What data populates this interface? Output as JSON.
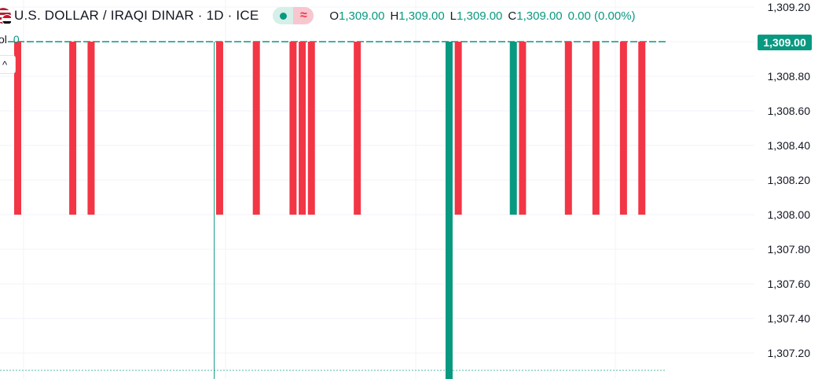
{
  "header": {
    "symbol_title": "U.S. DOLLAR / IRAQI DINAR · 1D · ICE",
    "ohlc": [
      {
        "key": "O",
        "value": "1,309.00"
      },
      {
        "key": "H",
        "value": "1,309.00"
      },
      {
        "key": "L",
        "value": "1,309.00"
      },
      {
        "key": "C",
        "value": "1,309.00"
      }
    ],
    "change": "0.00 (0.00%)",
    "volume_label": "ol",
    "volume_value": "0",
    "collapse_glyph": "^",
    "wave_glyph": "≈"
  },
  "price_tag": "1,309.00",
  "colors": {
    "up": "#089981",
    "down": "#f23645",
    "grid": "#f0f3fa",
    "text": "#131722"
  },
  "chart_data": {
    "type": "bar",
    "style": "ohlc-bars",
    "y_axis": {
      "ylim": [
        1307.1,
        1309.2
      ],
      "ticks": [
        1307.2,
        1307.4,
        1307.6,
        1307.8,
        1308.0,
        1308.2,
        1308.4,
        1308.6,
        1308.8,
        1309.0,
        1309.2
      ],
      "tick_labels": [
        "1,307.20",
        "1,307.40",
        "1,307.60",
        "1,307.80",
        "1,308.00",
        "1,308.20",
        "1,308.40",
        "1,308.60",
        "1,308.80",
        "1,309.00",
        "1,309.20"
      ],
      "position": "right"
    },
    "current_price": 1309.0,
    "grid": true,
    "bars": [
      {
        "index": 0,
        "low": 1308.0,
        "high": 1309.0,
        "direction": "down"
      },
      {
        "index": 6,
        "low": 1308.0,
        "high": 1309.0,
        "direction": "down"
      },
      {
        "index": 8,
        "low": 1308.0,
        "high": 1309.0,
        "direction": "down"
      },
      {
        "index": 22,
        "low": 1308.0,
        "high": 1309.0,
        "direction": "down"
      },
      {
        "index": 26,
        "low": 1308.0,
        "high": 1309.0,
        "direction": "down"
      },
      {
        "index": 30,
        "low": 1308.0,
        "high": 1309.0,
        "direction": "down"
      },
      {
        "index": 31,
        "low": 1308.0,
        "high": 1309.0,
        "direction": "down"
      },
      {
        "index": 32,
        "low": 1308.0,
        "high": 1309.0,
        "direction": "down"
      },
      {
        "index": 37,
        "low": 1308.0,
        "high": 1309.0,
        "direction": "down"
      },
      {
        "index": 47,
        "low": 1307.0,
        "high": 1309.0,
        "direction": "up"
      },
      {
        "index": 48,
        "low": 1308.0,
        "high": 1309.0,
        "direction": "down"
      },
      {
        "index": 54,
        "low": 1308.0,
        "high": 1309.0,
        "direction": "up"
      },
      {
        "index": 55,
        "low": 1308.0,
        "high": 1309.0,
        "direction": "down"
      },
      {
        "index": 60,
        "low": 1308.0,
        "high": 1309.0,
        "direction": "down"
      },
      {
        "index": 63,
        "low": 1308.0,
        "high": 1309.0,
        "direction": "down"
      },
      {
        "index": 66,
        "low": 1308.0,
        "high": 1309.0,
        "direction": "down"
      },
      {
        "index": 68,
        "low": 1308.0,
        "high": 1309.0,
        "direction": "down"
      }
    ],
    "flat_bars": {
      "index_range": [
        0,
        72
      ],
      "value": 1309.0
    },
    "vertical_line_index": 21.5
  }
}
